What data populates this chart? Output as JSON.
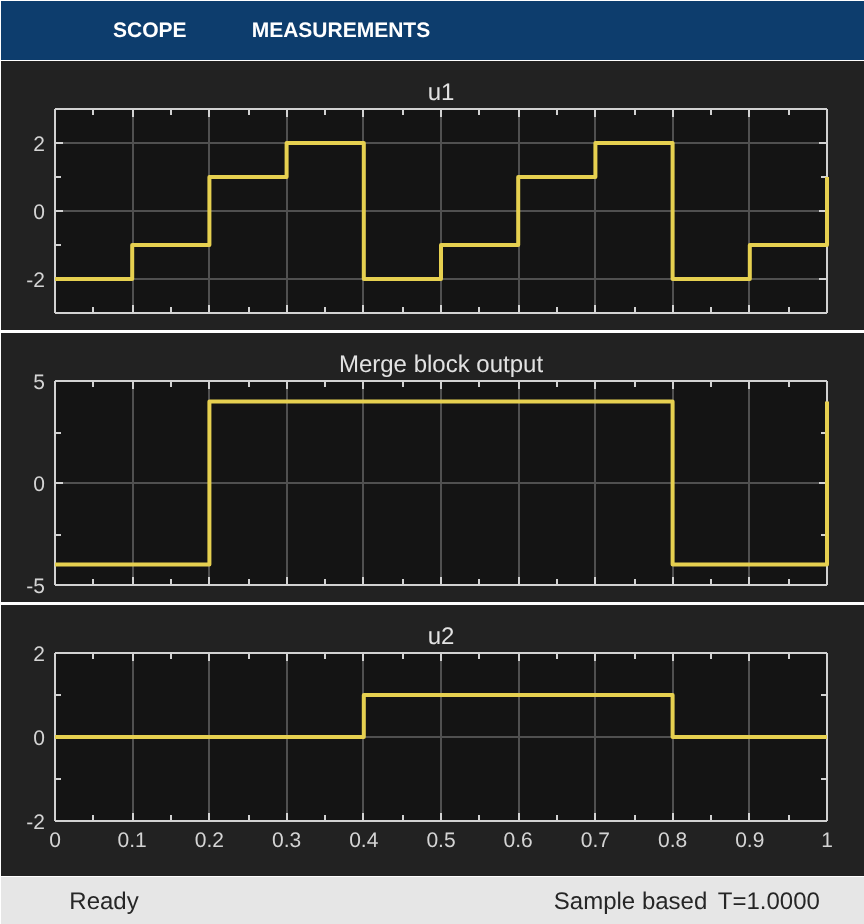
{
  "chart_data": [
    {
      "type": "other",
      "annotations": [
        "SCOPE",
        "MEASUREMENTS"
      ]
    },
    {
      "type": "step",
      "title": "u1",
      "x": [
        0,
        0.1,
        0.2,
        0.3,
        0.4,
        0.5,
        0.6,
        0.7,
        0.8,
        0.9,
        1
      ],
      "series": [
        {
          "color": "#e6d050",
          "values": [
            -2,
            -1,
            1,
            2,
            -2,
            -1,
            1,
            2,
            -2,
            -1,
            1
          ]
        }
      ],
      "xlim": [
        0,
        1
      ],
      "xticks": [
        0,
        {
          "value": 0.05,
          "label": null
        },
        0.1,
        {
          "value": 0.15,
          "label": null
        },
        0.2,
        {
          "value": 0.25,
          "label": null
        },
        0.3,
        {
          "value": 0.35,
          "label": null
        },
        0.4,
        {
          "value": 0.45,
          "label": null
        },
        0.5,
        {
          "value": 0.55,
          "label": null
        },
        0.6,
        {
          "value": 0.65,
          "label": null
        },
        0.7,
        {
          "value": 0.75,
          "label": null
        },
        0.8,
        {
          "value": 0.85,
          "label": null
        },
        0.9,
        {
          "value": 0.95,
          "label": null
        },
        1
      ],
      "ylim": [
        -3,
        3
      ],
      "yticks": [
        -2,
        {
          "value": -1,
          "label": null
        },
        0,
        {
          "value": 1,
          "label": null
        },
        2
      ],
      "grid": true,
      "tick_labels": "y"
    },
    {
      "type": "step",
      "title": "Merge block output",
      "x": [
        0,
        0.2,
        0.8,
        1
      ],
      "series": [
        {
          "color": "#e6d050",
          "values": [
            -4,
            4,
            -4,
            4
          ]
        }
      ],
      "xlim": [
        0,
        1
      ],
      "xticks": [
        0,
        {
          "value": 0.05,
          "label": null
        },
        0.1,
        {
          "value": 0.15,
          "label": null
        },
        0.2,
        {
          "value": 0.25,
          "label": null
        },
        0.3,
        {
          "value": 0.35,
          "label": null
        },
        0.4,
        {
          "value": 0.45,
          "label": null
        },
        0.5,
        {
          "value": 0.55,
          "label": null
        },
        0.6,
        {
          "value": 0.65,
          "label": null
        },
        0.7,
        {
          "value": 0.75,
          "label": null
        },
        0.8,
        {
          "value": 0.85,
          "label": null
        },
        0.9,
        {
          "value": 0.95,
          "label": null
        },
        1
      ],
      "ylim": [
        -5,
        5
      ],
      "yticks": [
        -5,
        {
          "value": -2.5,
          "label": null
        },
        0,
        {
          "value": 2.5,
          "label": null
        },
        5
      ],
      "grid": true,
      "tick_labels": "y"
    },
    {
      "type": "step",
      "title": "u2",
      "x": [
        0,
        0.4,
        0.8,
        1
      ],
      "series": [
        {
          "color": "#e6d050",
          "values": [
            0,
            1,
            0,
            0
          ]
        }
      ],
      "xlim": [
        0,
        1
      ],
      "xticks": [
        0,
        {
          "value": 0.05,
          "label": null
        },
        0.1,
        {
          "value": 0.15,
          "label": null
        },
        0.2,
        {
          "value": 0.25,
          "label": null
        },
        0.3,
        {
          "value": 0.35,
          "label": null
        },
        0.4,
        {
          "value": 0.45,
          "label": null
        },
        0.5,
        {
          "value": 0.55,
          "label": null
        },
        0.6,
        {
          "value": 0.65,
          "label": null
        },
        0.7,
        {
          "value": 0.75,
          "label": null
        },
        0.8,
        {
          "value": 0.85,
          "label": null
        },
        0.9,
        {
          "value": 0.95,
          "label": null
        },
        1
      ],
      "ylim": [
        -2,
        2
      ],
      "yticks": [
        -2,
        {
          "value": -1,
          "label": null
        },
        0,
        {
          "value": 1,
          "label": null
        },
        2
      ],
      "grid": true
    },
    {
      "type": "other",
      "annotations": [
        "Ready",
        "Sample based",
        "T=1.0000"
      ]
    }
  ]
}
